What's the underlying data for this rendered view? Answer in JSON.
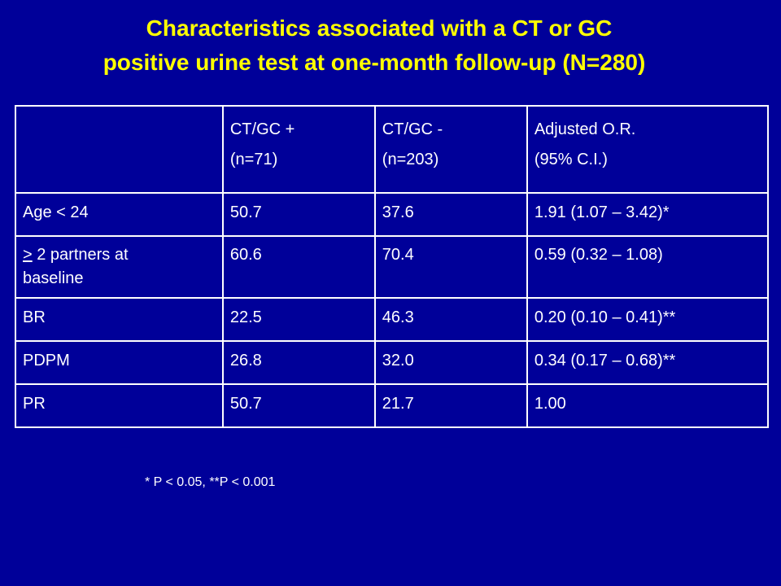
{
  "slide": {
    "title_line1": "Characteristics associated with a CT or GC",
    "title_line2": "positive urine test at one-month follow-up (N=280)",
    "footnote": "* P < 0.05, **P < 0.001"
  },
  "table": {
    "header": {
      "col1": "",
      "col2_line1": "CT/GC +",
      "col2_line2": "(n=71)",
      "col3_line1": "CT/GC -",
      "col3_line2": "(n=203)",
      "col4_line1": "Adjusted O.R.",
      "col4_line2": "(95% C.I.)"
    },
    "rows": [
      {
        "label": "Age < 24",
        "pos": "50.7",
        "neg": "37.6",
        "or": "1.91 (1.07 – 3.42)*"
      },
      {
        "label_symbol": ">",
        "label": " 2 partners at",
        "label_line2": "baseline",
        "pos": "60.6",
        "neg": "70.4",
        "or": "0.59 (0.32 – 1.08)"
      },
      {
        "label": "BR",
        "pos": "22.5",
        "neg": "46.3",
        "or": "0.20 (0.10 – 0.41)**"
      },
      {
        "label": "PDPM",
        "pos": "26.8",
        "neg": "32.0",
        "or": "0.34 (0.17 – 0.68)**"
      },
      {
        "label": "PR",
        "pos": "50.7",
        "neg": "21.7",
        "or": "1.00"
      }
    ]
  }
}
